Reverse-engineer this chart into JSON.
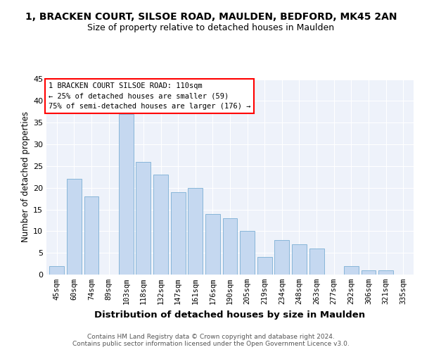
{
  "title": "1, BRACKEN COURT, SILSOE ROAD, MAULDEN, BEDFORD, MK45 2AN",
  "subtitle": "Size of property relative to detached houses in Maulden",
  "xlabel": "Distribution of detached houses by size in Maulden",
  "ylabel": "Number of detached properties",
  "categories": [
    "45sqm",
    "60sqm",
    "74sqm",
    "89sqm",
    "103sqm",
    "118sqm",
    "132sqm",
    "147sqm",
    "161sqm",
    "176sqm",
    "190sqm",
    "205sqm",
    "219sqm",
    "234sqm",
    "248sqm",
    "263sqm",
    "277sqm",
    "292sqm",
    "306sqm",
    "321sqm",
    "335sqm"
  ],
  "values": [
    2,
    22,
    18,
    0,
    37,
    26,
    23,
    19,
    20,
    14,
    13,
    10,
    4,
    8,
    7,
    6,
    0,
    2,
    1,
    1,
    0
  ],
  "bar_color": "#c5d8f0",
  "bar_edgecolor": "#7bafd4",
  "ylim": [
    0,
    45
  ],
  "yticks": [
    0,
    5,
    10,
    15,
    20,
    25,
    30,
    35,
    40,
    45
  ],
  "annotation_box_text": "1 BRACKEN COURT SILSOE ROAD: 110sqm\n← 25% of detached houses are smaller (59)\n75% of semi-detached houses are larger (176) →",
  "footer_line1": "Contains HM Land Registry data © Crown copyright and database right 2024.",
  "footer_line2": "Contains public sector information licensed under the Open Government Licence v3.0.",
  "bg_color": "#eef2fa",
  "title_fontsize": 10,
  "subtitle_fontsize": 9,
  "xlabel_fontsize": 9.5,
  "ylabel_fontsize": 8.5,
  "tick_fontsize": 7.5,
  "footer_fontsize": 6.5,
  "annotation_fontsize": 7.5
}
